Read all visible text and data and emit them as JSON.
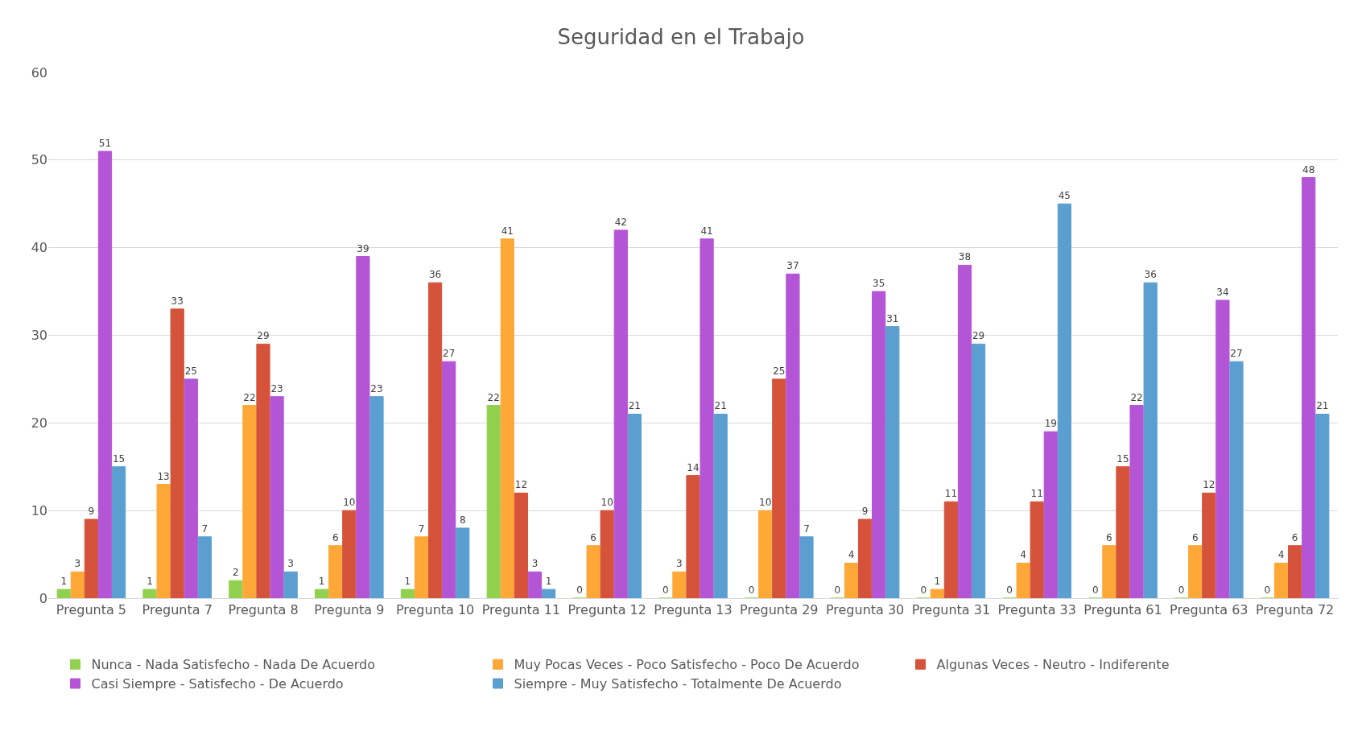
{
  "chart_data": {
    "type": "bar",
    "title": "Seguridad en el Trabajo",
    "categories": [
      "Pregunta 5",
      "Pregunta 7",
      "Pregunta 8",
      "Pregunta 9",
      "Pregunta 10",
      "Pregunta 11",
      "Pregunta 12",
      "Pregunta 13",
      "Pregunta 29",
      "Pregunta 30",
      "Pregunta 31",
      "Pregunta 33",
      "Pregunta 61",
      "Pregunta 63",
      "Pregunta 72"
    ],
    "series": [
      {
        "name": "Nunca - Nada Satisfecho - Nada De Acuerdo",
        "color": "#92d050",
        "values": [
          1,
          1,
          2,
          1,
          1,
          22,
          0,
          0,
          0,
          0,
          0,
          0,
          0,
          0,
          0
        ]
      },
      {
        "name": "Muy Pocas Veces - Poco Satisfecho - Poco De Acuerdo",
        "color": "#ffa838",
        "values": [
          3,
          13,
          22,
          6,
          7,
          41,
          6,
          3,
          10,
          4,
          1,
          4,
          6,
          6,
          4
        ]
      },
      {
        "name": "Algunas Veces - Neutro - Indiferente",
        "color": "#d5533b",
        "values": [
          9,
          33,
          29,
          10,
          36,
          12,
          10,
          14,
          25,
          9,
          11,
          11,
          15,
          12,
          6
        ]
      },
      {
        "name": "Casi Siempre - Satisfecho - De Acuerdo",
        "color": "#b455d6",
        "values": [
          51,
          25,
          23,
          39,
          27,
          3,
          42,
          41,
          37,
          35,
          38,
          19,
          22,
          34,
          48
        ]
      },
      {
        "name": "Siempre - Muy Satisfecho - Totalmente De Acuerdo",
        "color": "#5b9fd1",
        "values": [
          15,
          7,
          3,
          23,
          8,
          1,
          21,
          21,
          7,
          31,
          29,
          45,
          36,
          27,
          21
        ]
      }
    ],
    "ylim": [
      0,
      60
    ],
    "yticks": [
      0,
      10,
      20,
      30,
      40,
      50,
      60
    ],
    "grid": "y",
    "legend": "bottom",
    "data_labels": true
  }
}
